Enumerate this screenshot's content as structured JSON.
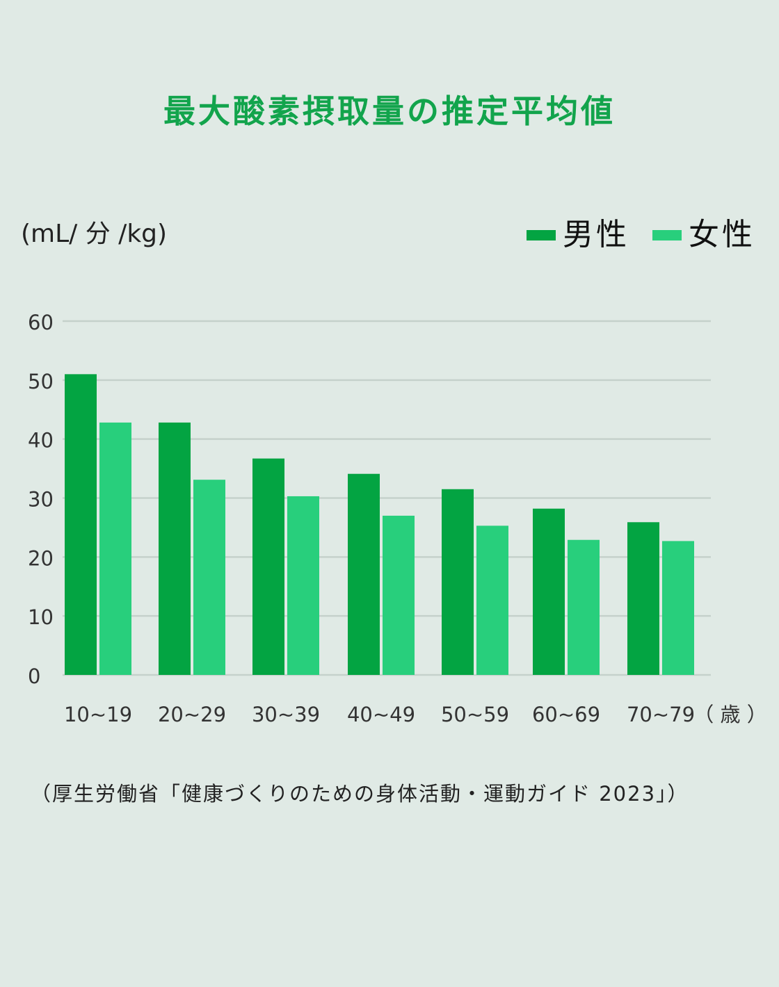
{
  "title": "最大酸素摂取量の推定平均値",
  "unit_label": "(mL/ 分 /kg)",
  "x_unit_label": "（ 歳 ）",
  "source": "（厚生労働省「健康づくりのための身体活動・運動ガイド 2023」）",
  "colors": {
    "background": "#e0eae5",
    "title": "#12a44c",
    "male": "#03a442",
    "female": "#28cf7c",
    "grid": "#c5d1cb"
  },
  "chart_data": {
    "type": "bar",
    "categories": [
      "10~19",
      "20~29",
      "30~39",
      "40~49",
      "50~59",
      "60~69",
      "70~79"
    ],
    "series": [
      {
        "name": "男性",
        "values": [
          51.0,
          42.8,
          36.7,
          34.1,
          31.5,
          28.2,
          25.9
        ]
      },
      {
        "name": "女性",
        "values": [
          42.8,
          33.1,
          30.3,
          27.0,
          25.3,
          22.9,
          22.7
        ]
      }
    ],
    "yticks": [
      0,
      10,
      20,
      30,
      40,
      50,
      60
    ],
    "ylim": [
      0,
      60
    ],
    "legend_position": "top-right",
    "grid": true
  }
}
